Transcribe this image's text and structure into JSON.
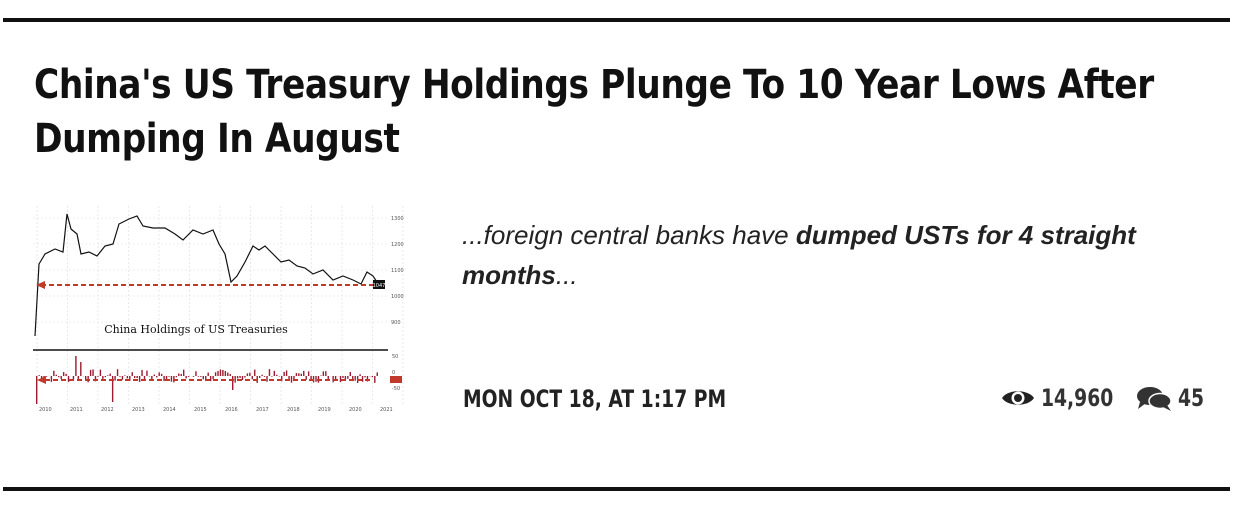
{
  "article": {
    "title": "China's US Treasury Holdings Plunge To 10 Year Lows After Dumping In August",
    "excerpt_pre": "...foreign central banks have ",
    "excerpt_bold": "dumped USTs for 4 straight months",
    "excerpt_post": "...",
    "date": "MON OCT 18, AT 1:17 PM",
    "views": "14,960",
    "comments": "45",
    "view_icon": "eye-icon",
    "comment_icon": "comments-icon"
  },
  "thumbnail": {
    "chart_title": "China Holdings of US Treasuries",
    "y_ticks_top": [
      "1300",
      "1200",
      "1100",
      "1000",
      "900"
    ],
    "y_ticks_bottom": [
      "50",
      "0",
      "-50"
    ],
    "current_value_label": "1047",
    "x_years": [
      "2010",
      "2011",
      "2012",
      "2013",
      "2014",
      "2015",
      "2016",
      "2017",
      "2018",
      "2019",
      "2020",
      "2021"
    ],
    "colors": {
      "line": "#111111",
      "arrow": "#c0392b",
      "bars": "#9b1b30"
    }
  }
}
